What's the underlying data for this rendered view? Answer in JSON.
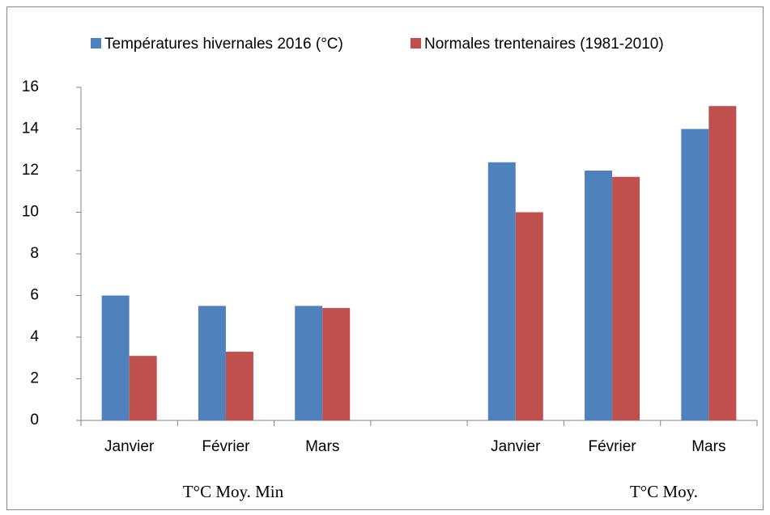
{
  "chart_data": {
    "type": "bar",
    "categories": [
      "Janvier",
      "Février",
      "Mars",
      null,
      "Janvier",
      "Février",
      "Mars"
    ],
    "group_labels": [
      "T°C Moy. Min",
      "T°C Moy."
    ],
    "series": [
      {
        "name": "Températures hivernales 2016 (°C)",
        "color": "#4f81bd",
        "values": [
          6,
          5.5,
          5.5,
          null,
          12.4,
          12,
          14
        ]
      },
      {
        "name": "Normales trentenaires (1981-2010)",
        "color": "#c0504d",
        "values": [
          3.1,
          3.3,
          5.4,
          null,
          10,
          11.7,
          15.1
        ]
      }
    ],
    "ylim": [
      0,
      16
    ],
    "yticks": [
      0,
      2,
      4,
      6,
      8,
      10,
      12,
      14,
      16
    ],
    "grid": false,
    "legend": "top"
  }
}
